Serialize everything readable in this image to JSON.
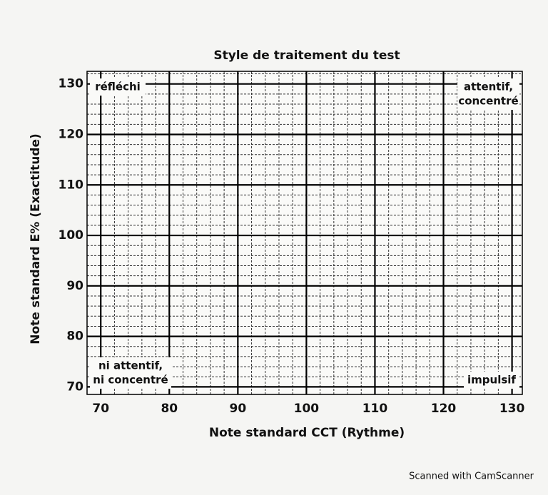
{
  "chart_data": {
    "type": "scatter",
    "title": "Style de traitement du test",
    "xlabel": "Note standard CCT (Rythme)",
    "ylabel": "Note standard E% (Exactitude)",
    "xlim": [
      68,
      131.5
    ],
    "ylim": [
      68.5,
      132.5
    ],
    "xticks": [
      70,
      80,
      90,
      100,
      110,
      120,
      130
    ],
    "yticks": [
      70,
      80,
      90,
      100,
      110,
      120,
      130
    ],
    "grid": true,
    "minor_grid_step": 2,
    "series": [],
    "annotations": [
      {
        "corner": "top-left",
        "lines": [
          "réfléchi"
        ]
      },
      {
        "corner": "top-right",
        "lines": [
          "attentif,",
          "concentré"
        ]
      },
      {
        "corner": "bottom-left",
        "lines": [
          "ni attentif,",
          "ni concentré"
        ]
      },
      {
        "corner": "bottom-right",
        "lines": [
          "impulsif"
        ]
      }
    ]
  },
  "footer": "Scanned with CamScanner"
}
